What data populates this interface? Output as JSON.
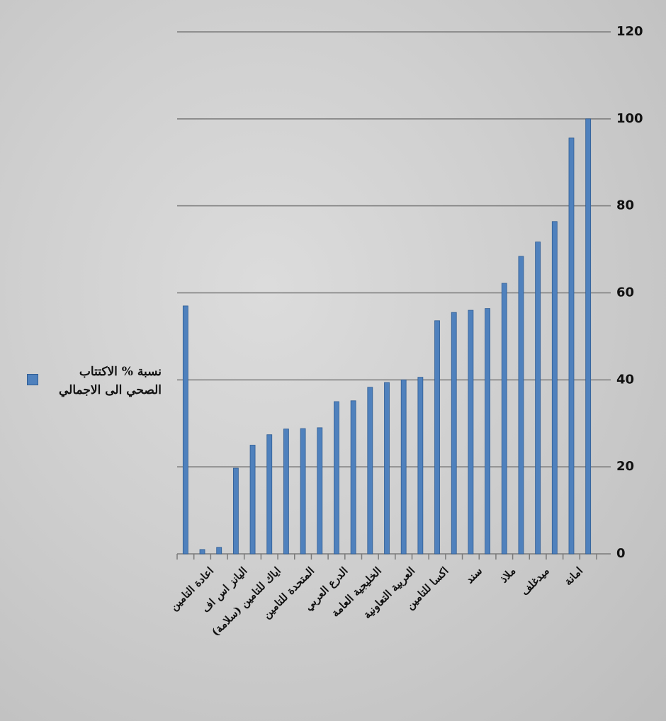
{
  "chart_data": {
    "type": "bar",
    "categories": [
      null,
      "اعادة التامين",
      null,
      "اليانز اس اف",
      null,
      "اياك للتامين (سلامة)",
      null,
      "المتحدة للتامين",
      null,
      "الدرع العربي",
      null,
      "الخليجية العامة",
      null,
      "العربية التعاونية",
      null,
      "اكسا للتامين",
      null,
      "سند",
      null,
      "ملاذ",
      null,
      "ميدغلف",
      null,
      "امانة",
      null
    ],
    "series": [
      {
        "name": "نسبة % الاكتتاب الصحي الى الاجمالي",
        "color": "#4f81bd",
        "values": [
          57,
          1,
          1.5,
          19.7,
          25,
          27.4,
          28.7,
          28.8,
          29,
          35,
          35.2,
          38.3,
          39.4,
          40,
          40.6,
          53.6,
          55.5,
          56,
          56.4,
          62.2,
          68.4,
          71.7,
          76.4,
          95.6,
          100
        ]
      }
    ],
    "ylim": [
      0,
      120
    ],
    "yticks": [
      0,
      20,
      40,
      60,
      80,
      100,
      120
    ],
    "grid": true
  }
}
